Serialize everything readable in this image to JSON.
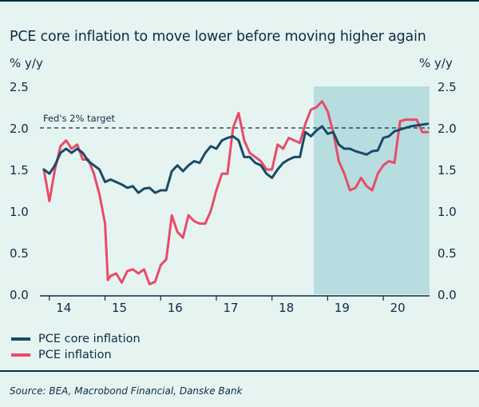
{
  "title": "PCE core inflation to move lower before moving higher again",
  "y_unit_left": "% y/y",
  "y_unit_right": "% y/y",
  "source": "Source: BEA, Macrobond Financial, Danske Bank",
  "colors": {
    "background": "#e6f4f1",
    "forecast_shade": "#b7dde0",
    "core": "#1a4a67",
    "headline": "#e94b68",
    "text": "#0b2d46"
  },
  "chart_data": {
    "type": "line",
    "x_ticks": [
      {
        "label": "14",
        "x": 2014
      },
      {
        "label": "15",
        "x": 2015
      },
      {
        "label": "16",
        "x": 2016
      },
      {
        "label": "17",
        "x": 2017
      },
      {
        "label": "18",
        "x": 2018
      },
      {
        "label": "19",
        "x": 2019
      },
      {
        "label": "20",
        "x": 2020
      }
    ],
    "y_ticks": [
      "0.0",
      "0.5",
      "1.0",
      "1.5",
      "2.0",
      "2.5"
    ],
    "ylim": [
      0,
      2.5
    ],
    "xlim": [
      2013.83,
      2020.83
    ],
    "forecast_start": 2018.75,
    "reference_line": {
      "value": 2.0,
      "label": "Fed's 2% target"
    },
    "legend_position": "bottom-left",
    "series": [
      {
        "name": "PCE core inflation",
        "color": "#1a4a67",
        "points": [
          [
            2013.9,
            1.5
          ],
          [
            2014.0,
            1.45
          ],
          [
            2014.1,
            1.55
          ],
          [
            2014.2,
            1.7
          ],
          [
            2014.3,
            1.75
          ],
          [
            2014.4,
            1.7
          ],
          [
            2014.5,
            1.75
          ],
          [
            2014.6,
            1.7
          ],
          [
            2014.7,
            1.6
          ],
          [
            2014.8,
            1.55
          ],
          [
            2014.9,
            1.5
          ],
          [
            2015.0,
            1.35
          ],
          [
            2015.1,
            1.38
          ],
          [
            2015.2,
            1.35
          ],
          [
            2015.3,
            1.32
          ],
          [
            2015.4,
            1.28
          ],
          [
            2015.5,
            1.3
          ],
          [
            2015.6,
            1.22
          ],
          [
            2015.7,
            1.27
          ],
          [
            2015.8,
            1.28
          ],
          [
            2015.9,
            1.22
          ],
          [
            2016.0,
            1.25
          ],
          [
            2016.1,
            1.25
          ],
          [
            2016.2,
            1.48
          ],
          [
            2016.3,
            1.55
          ],
          [
            2016.4,
            1.48
          ],
          [
            2016.5,
            1.55
          ],
          [
            2016.6,
            1.6
          ],
          [
            2016.7,
            1.58
          ],
          [
            2016.8,
            1.7
          ],
          [
            2016.9,
            1.78
          ],
          [
            2017.0,
            1.75
          ],
          [
            2017.1,
            1.85
          ],
          [
            2017.2,
            1.88
          ],
          [
            2017.3,
            1.9
          ],
          [
            2017.4,
            1.85
          ],
          [
            2017.5,
            1.65
          ],
          [
            2017.6,
            1.65
          ],
          [
            2017.7,
            1.58
          ],
          [
            2017.8,
            1.55
          ],
          [
            2017.9,
            1.45
          ],
          [
            2018.0,
            1.4
          ],
          [
            2018.1,
            1.5
          ],
          [
            2018.2,
            1.58
          ],
          [
            2018.3,
            1.62
          ],
          [
            2018.4,
            1.65
          ],
          [
            2018.5,
            1.65
          ],
          [
            2018.6,
            1.95
          ],
          [
            2018.7,
            1.9
          ],
          [
            2018.8,
            1.97
          ],
          [
            2018.9,
            2.02
          ],
          [
            2019.0,
            1.93
          ],
          [
            2019.1,
            1.95
          ],
          [
            2019.2,
            1.8
          ],
          [
            2019.3,
            1.75
          ],
          [
            2019.4,
            1.75
          ],
          [
            2019.5,
            1.72
          ],
          [
            2019.6,
            1.7
          ],
          [
            2019.7,
            1.68
          ],
          [
            2019.8,
            1.72
          ],
          [
            2019.9,
            1.73
          ],
          [
            2020.0,
            1.88
          ],
          [
            2020.1,
            1.9
          ],
          [
            2020.2,
            1.96
          ],
          [
            2020.3,
            1.98
          ],
          [
            2020.4,
            2.0
          ],
          [
            2020.5,
            2.02
          ],
          [
            2020.6,
            2.03
          ],
          [
            2020.7,
            2.04
          ],
          [
            2020.8,
            2.05
          ]
        ]
      },
      {
        "name": "PCE inflation",
        "color": "#e94b68",
        "points": [
          [
            2013.9,
            1.5
          ],
          [
            2014.0,
            1.12
          ],
          [
            2014.1,
            1.5
          ],
          [
            2014.2,
            1.78
          ],
          [
            2014.3,
            1.85
          ],
          [
            2014.4,
            1.75
          ],
          [
            2014.5,
            1.8
          ],
          [
            2014.6,
            1.62
          ],
          [
            2014.7,
            1.62
          ],
          [
            2014.8,
            1.45
          ],
          [
            2014.9,
            1.2
          ],
          [
            2015.0,
            0.85
          ],
          [
            2015.05,
            0.17
          ],
          [
            2015.1,
            0.22
          ],
          [
            2015.2,
            0.25
          ],
          [
            2015.3,
            0.14
          ],
          [
            2015.4,
            0.28
          ],
          [
            2015.5,
            0.3
          ],
          [
            2015.6,
            0.25
          ],
          [
            2015.7,
            0.3
          ],
          [
            2015.8,
            0.12
          ],
          [
            2015.9,
            0.15
          ],
          [
            2016.0,
            0.35
          ],
          [
            2016.1,
            0.42
          ],
          [
            2016.2,
            0.95
          ],
          [
            2016.3,
            0.75
          ],
          [
            2016.4,
            0.68
          ],
          [
            2016.5,
            0.95
          ],
          [
            2016.6,
            0.88
          ],
          [
            2016.7,
            0.85
          ],
          [
            2016.8,
            0.85
          ],
          [
            2016.9,
            1.0
          ],
          [
            2017.0,
            1.25
          ],
          [
            2017.1,
            1.45
          ],
          [
            2017.2,
            1.45
          ],
          [
            2017.3,
            2.0
          ],
          [
            2017.4,
            2.18
          ],
          [
            2017.5,
            1.85
          ],
          [
            2017.6,
            1.7
          ],
          [
            2017.7,
            1.65
          ],
          [
            2017.8,
            1.6
          ],
          [
            2017.9,
            1.5
          ],
          [
            2018.0,
            1.5
          ],
          [
            2018.1,
            1.8
          ],
          [
            2018.2,
            1.75
          ],
          [
            2018.3,
            1.88
          ],
          [
            2018.4,
            1.85
          ],
          [
            2018.5,
            1.82
          ],
          [
            2018.6,
            2.05
          ],
          [
            2018.7,
            2.22
          ],
          [
            2018.8,
            2.25
          ],
          [
            2018.9,
            2.32
          ],
          [
            2019.0,
            2.2
          ],
          [
            2019.1,
            1.95
          ],
          [
            2019.2,
            1.6
          ],
          [
            2019.3,
            1.45
          ],
          [
            2019.4,
            1.25
          ],
          [
            2019.5,
            1.28
          ],
          [
            2019.6,
            1.4
          ],
          [
            2019.7,
            1.3
          ],
          [
            2019.8,
            1.25
          ],
          [
            2019.9,
            1.45
          ],
          [
            2020.0,
            1.55
          ],
          [
            2020.1,
            1.6
          ],
          [
            2020.2,
            1.58
          ],
          [
            2020.3,
            2.08
          ],
          [
            2020.4,
            2.1
          ],
          [
            2020.5,
            2.1
          ],
          [
            2020.6,
            2.1
          ],
          [
            2020.7,
            1.95
          ],
          [
            2020.8,
            1.95
          ]
        ]
      }
    ]
  }
}
